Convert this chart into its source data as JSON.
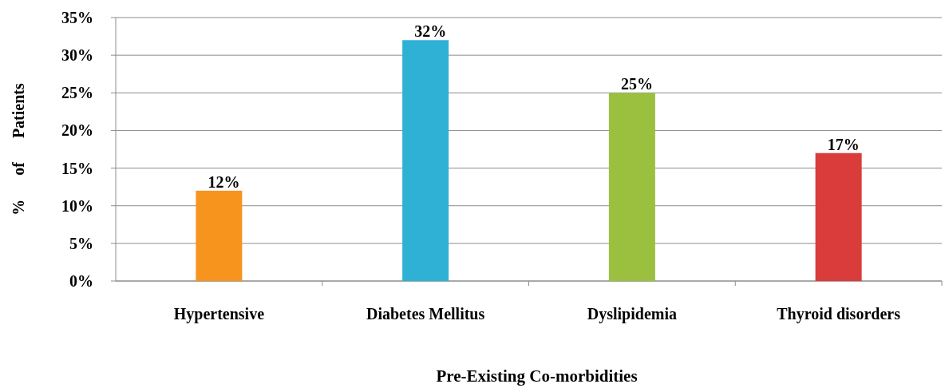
{
  "chart_data": {
    "type": "bar",
    "xlabel": "Pre-Existing Co-morbidities",
    "ylabel": "%      of      Patients",
    "categories": [
      "Hypertensive",
      "Diabetes Mellitus",
      "Dyslipidemia",
      "Thyroid disorders"
    ],
    "values": [
      12,
      32,
      25,
      17
    ],
    "colors": [
      "#f7941d",
      "#2fb1d6",
      "#9bc040",
      "#d93c3a"
    ],
    "value_labels": [
      "12%",
      "32%",
      "25%",
      "17%"
    ],
    "ylim": [
      0,
      35
    ],
    "yticks": [
      {
        "value": 0,
        "label": "0%"
      },
      {
        "value": 5,
        "label": "5%"
      },
      {
        "value": 10,
        "label": "10%"
      },
      {
        "value": 15,
        "label": "15%"
      },
      {
        "value": 20,
        "label": "20%"
      },
      {
        "value": 25,
        "label": "25%"
      },
      {
        "value": 30,
        "label": "30%"
      },
      {
        "value": 35,
        "label": "35%"
      }
    ],
    "grid": "y"
  }
}
